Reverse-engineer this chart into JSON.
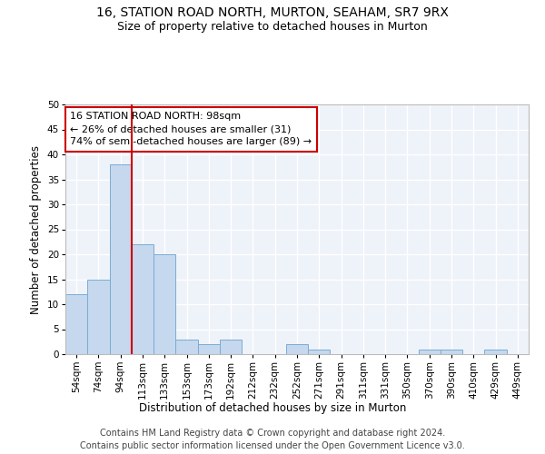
{
  "title1": "16, STATION ROAD NORTH, MURTON, SEAHAM, SR7 9RX",
  "title2": "Size of property relative to detached houses in Murton",
  "xlabel": "Distribution of detached houses by size in Murton",
  "ylabel": "Number of detached properties",
  "categories": [
    "54sqm",
    "74sqm",
    "94sqm",
    "113sqm",
    "133sqm",
    "153sqm",
    "173sqm",
    "192sqm",
    "212sqm",
    "232sqm",
    "252sqm",
    "271sqm",
    "291sqm",
    "311sqm",
    "331sqm",
    "350sqm",
    "370sqm",
    "390sqm",
    "410sqm",
    "429sqm",
    "449sqm"
  ],
  "values": [
    12,
    15,
    38,
    22,
    20,
    3,
    2,
    3,
    0,
    0,
    2,
    1,
    0,
    0,
    0,
    0,
    1,
    1,
    0,
    1,
    0
  ],
  "bar_color": "#c5d8ed",
  "bar_edge_color": "#7aadd4",
  "vline_color": "#cc0000",
  "annotation_text": "16 STATION ROAD NORTH: 98sqm\n← 26% of detached houses are smaller (31)\n74% of semi-detached houses are larger (89) →",
  "annotation_box_color": "#ffffff",
  "annotation_box_edge": "#cc0000",
  "ylim": [
    0,
    50
  ],
  "yticks": [
    0,
    5,
    10,
    15,
    20,
    25,
    30,
    35,
    40,
    45,
    50
  ],
  "footer1": "Contains HM Land Registry data © Crown copyright and database right 2024.",
  "footer2": "Contains public sector information licensed under the Open Government Licence v3.0.",
  "bg_color": "#eef2f9",
  "grid_color": "#ffffff",
  "title1_fontsize": 10,
  "title2_fontsize": 9,
  "axis_label_fontsize": 8.5,
  "tick_fontsize": 7.5,
  "annotation_fontsize": 8,
  "footer_fontsize": 7
}
